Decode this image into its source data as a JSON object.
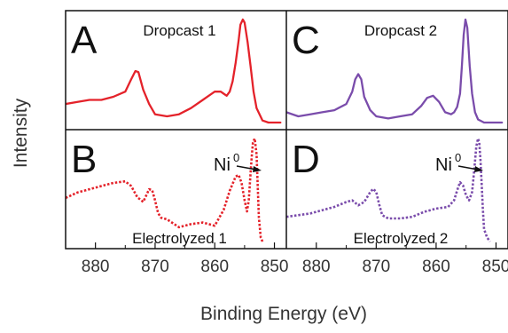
{
  "chart_data": {
    "type": "line",
    "xlabel": "Binding Energy (eV)",
    "ylabel": "Intensity",
    "xlim": [
      885,
      848
    ],
    "x_ticks": [
      880,
      870,
      860,
      850
    ],
    "x_tick_labels": [
      "880",
      "870",
      "860",
      "850"
    ],
    "x_reversed": true,
    "panels": [
      {
        "letter": "A",
        "title": "Dropcast 1",
        "column": 0,
        "row": 0,
        "color": "#e4222a",
        "style": "solid",
        "annotation": null,
        "x": [
          885,
          883,
          881,
          879,
          877,
          875,
          874,
          873.3,
          872.8,
          872,
          871,
          870,
          868,
          866,
          864,
          862,
          861,
          860,
          859,
          858.5,
          858,
          857.5,
          857,
          856.5,
          856,
          855.7,
          855.3,
          855,
          854.5,
          854,
          853.5,
          853,
          852,
          851,
          850,
          849
        ],
        "y": [
          0.18,
          0.2,
          0.22,
          0.22,
          0.25,
          0.3,
          0.42,
          0.5,
          0.49,
          0.32,
          0.18,
          0.08,
          0.06,
          0.08,
          0.14,
          0.22,
          0.26,
          0.3,
          0.3,
          0.28,
          0.26,
          0.3,
          0.4,
          0.58,
          0.8,
          0.95,
          1.0,
          0.97,
          0.78,
          0.55,
          0.3,
          0.14,
          0.02,
          0.0,
          0.0,
          0.0
        ]
      },
      {
        "letter": "C",
        "title": "Dropcast 2",
        "column": 1,
        "row": 0,
        "color": "#7a4cab",
        "style": "solid",
        "annotation": null,
        "x": [
          885,
          883,
          881,
          879,
          877,
          875,
          874,
          873.5,
          873,
          872.5,
          872,
          871,
          870,
          868,
          866,
          864,
          862.5,
          861.5,
          860.5,
          859.5,
          858.5,
          857.5,
          857,
          856.5,
          856,
          855.7,
          855.4,
          855.1,
          854.8,
          854.4,
          854,
          853.5,
          853,
          852,
          851,
          850,
          849
        ],
        "y": [
          0.1,
          0.06,
          0.08,
          0.1,
          0.12,
          0.18,
          0.3,
          0.42,
          0.47,
          0.42,
          0.25,
          0.12,
          0.06,
          0.04,
          0.06,
          0.08,
          0.16,
          0.24,
          0.26,
          0.2,
          0.1,
          0.08,
          0.1,
          0.15,
          0.28,
          0.55,
          0.85,
          1.0,
          0.92,
          0.55,
          0.28,
          0.1,
          0.03,
          0.0,
          0.0,
          0.0,
          0.0
        ]
      },
      {
        "letter": "B",
        "title": "Electrolyzed 1",
        "column": 0,
        "row": 1,
        "color": "#e4222a",
        "style": "dotted",
        "annotation": {
          "base": "Ni",
          "superscript": "0"
        },
        "x": [
          885,
          883,
          881,
          879,
          877,
          875,
          874,
          873,
          872,
          871.5,
          871,
          870.5,
          870,
          869.5,
          869,
          868,
          866,
          864,
          862,
          860,
          858.5,
          857.5,
          856.5,
          856,
          855.5,
          855,
          854.6,
          854.3,
          854,
          853.8,
          853.6,
          853.3,
          853,
          852.8,
          852.6,
          852.3,
          852
        ],
        "y": [
          0.55,
          0.62,
          0.66,
          0.7,
          0.74,
          0.76,
          0.7,
          0.56,
          0.5,
          0.58,
          0.66,
          0.65,
          0.52,
          0.36,
          0.3,
          0.28,
          0.18,
          0.22,
          0.24,
          0.2,
          0.4,
          0.64,
          0.82,
          0.84,
          0.74,
          0.52,
          0.38,
          0.52,
          0.86,
          1.08,
          1.25,
          1.3,
          1.1,
          0.7,
          0.3,
          0.05,
          0.0
        ]
      },
      {
        "letter": "D",
        "title": "Electrolyzed 2",
        "column": 1,
        "row": 1,
        "color": "#7a4cab",
        "style": "dotted",
        "annotation": {
          "base": "Ni",
          "superscript": "0"
        },
        "x": [
          885,
          883,
          881,
          879,
          877,
          875,
          874,
          873,
          872,
          871,
          870.5,
          870,
          869.5,
          869,
          868,
          866,
          864,
          862,
          860,
          858,
          857,
          856.5,
          856,
          855.5,
          855,
          854.5,
          854,
          853.6,
          853.3,
          853,
          852.8,
          852.6,
          852.4,
          852.2,
          852,
          851.5,
          851
        ],
        "y": [
          0.3,
          0.32,
          0.34,
          0.38,
          0.42,
          0.48,
          0.5,
          0.44,
          0.48,
          0.6,
          0.64,
          0.6,
          0.45,
          0.32,
          0.28,
          0.28,
          0.3,
          0.36,
          0.4,
          0.42,
          0.5,
          0.62,
          0.72,
          0.68,
          0.56,
          0.5,
          0.6,
          0.9,
          1.15,
          1.25,
          1.2,
          1.0,
          0.7,
          0.4,
          0.15,
          0.05,
          0.0
        ]
      }
    ]
  }
}
